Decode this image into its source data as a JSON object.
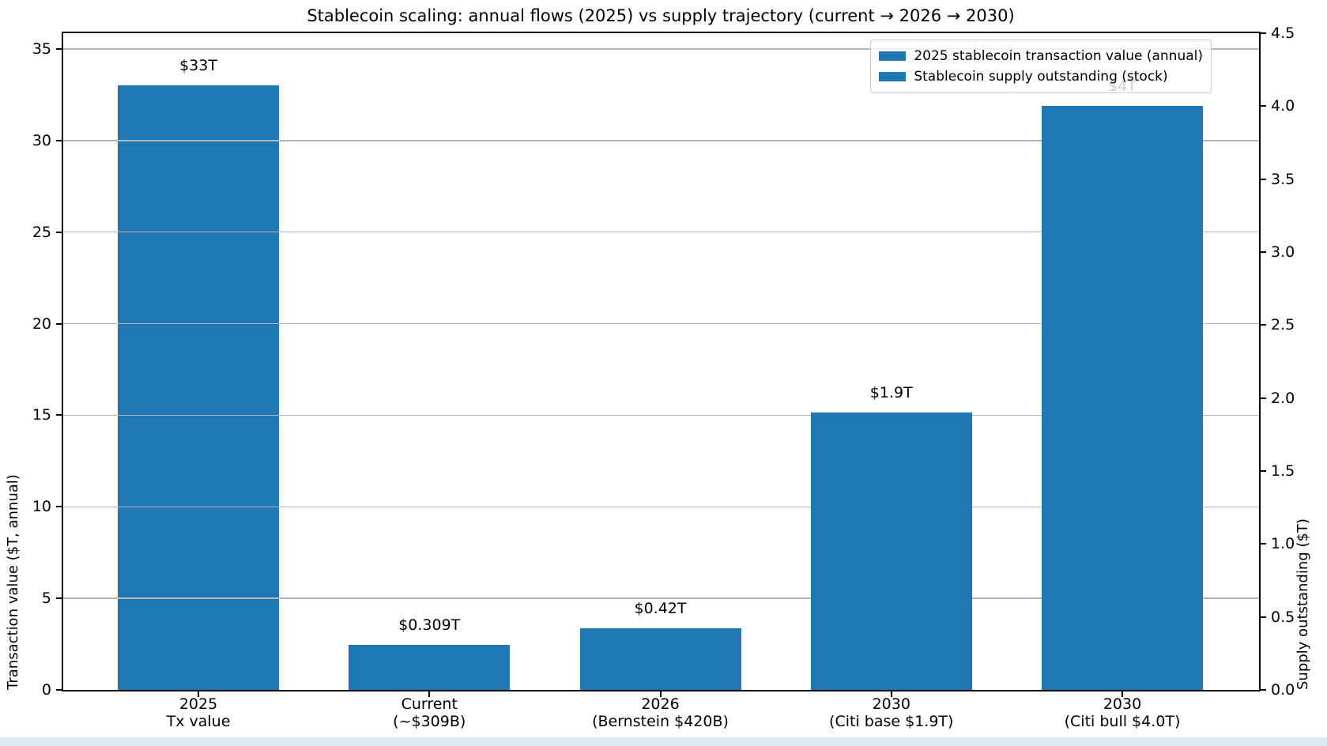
{
  "page": {
    "background": "#ffffff",
    "bottom_strip_color": "#dbe8f5"
  },
  "chart_data": {
    "type": "bar",
    "title": "Stablecoin scaling: annual flows (2025) vs supply trajectory (current → 2026 → 2030)",
    "left_axis": {
      "label": "Transaction value ($T, annual)",
      "ticks": [
        0,
        5,
        10,
        15,
        20,
        25,
        30,
        35
      ],
      "tick_labels": [
        "0",
        "5",
        "10",
        "15",
        "20",
        "25",
        "30",
        "35"
      ],
      "range": [
        0,
        35.86
      ]
    },
    "right_axis": {
      "label": "Supply outstanding ($T)",
      "ticks": [
        0.0,
        0.5,
        1.0,
        1.5,
        2.0,
        2.5,
        3.0,
        3.5,
        4.0,
        4.5
      ],
      "tick_labels": [
        "0.0",
        "0.5",
        "1.0",
        "1.5",
        "2.0",
        "2.5",
        "3.0",
        "3.5",
        "4.0",
        "4.5"
      ],
      "range": [
        0,
        4.5
      ]
    },
    "categories": [
      [
        "2025",
        "Tx value"
      ],
      [
        "Current",
        "(~$309B)"
      ],
      [
        "2026",
        "(Bernstein $420B)"
      ],
      [
        "2030",
        "(Citi base $1.9T)"
      ],
      [
        "2030",
        "(Citi bull $4.0T)"
      ]
    ],
    "series": [
      {
        "name": "2025 stablecoin transaction value (annual)",
        "axis": "left",
        "values": [
          33,
          null,
          null,
          null,
          null
        ]
      },
      {
        "name": "Stablecoin supply outstanding (stock)",
        "axis": "right",
        "values": [
          null,
          0.309,
          0.42,
          1.9,
          4.0
        ]
      }
    ],
    "annotations": [
      "$33T",
      "$0.309T",
      "$0.42T",
      "$1.9T",
      "$4T"
    ],
    "bar_color": "#1f77b4",
    "grid": {
      "on": true,
      "axis": "y",
      "color": "#b6b6b6"
    },
    "legend": {
      "position": "upper right",
      "entries": [
        {
          "label": "2025 stablecoin transaction value (annual)",
          "color": "#1f77b4"
        },
        {
          "label": "Stablecoin supply outstanding (stock)",
          "color": "#1f77b4"
        }
      ]
    }
  }
}
